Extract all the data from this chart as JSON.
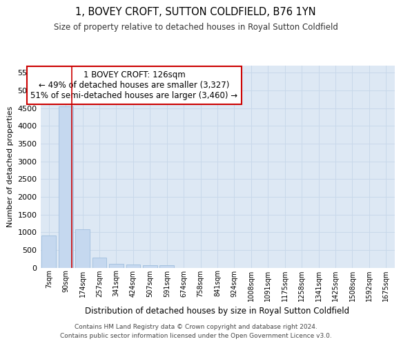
{
  "title": "1, BOVEY CROFT, SUTTON COLDFIELD, B76 1YN",
  "subtitle": "Size of property relative to detached houses in Royal Sutton Coldfield",
  "xlabel": "Distribution of detached houses by size in Royal Sutton Coldfield",
  "ylabel": "Number of detached properties",
  "categories": [
    "7sqm",
    "90sqm",
    "174sqm",
    "257sqm",
    "341sqm",
    "424sqm",
    "507sqm",
    "591sqm",
    "674sqm",
    "758sqm",
    "841sqm",
    "924sqm",
    "1008sqm",
    "1091sqm",
    "1175sqm",
    "1258sqm",
    "1341sqm",
    "1425sqm",
    "1508sqm",
    "1592sqm",
    "1675sqm"
  ],
  "values": [
    900,
    4550,
    1075,
    290,
    100,
    80,
    60,
    70,
    0,
    0,
    0,
    0,
    0,
    0,
    0,
    0,
    0,
    0,
    0,
    0,
    0
  ],
  "bar_color": "#c5d8ef",
  "bar_edge_color": "#a0bedd",
  "grid_color": "#c8d8ea",
  "background_color": "#dde8f4",
  "vline_x": 1.38,
  "vline_color": "#cc0000",
  "annotation_line1": "1 BOVEY CROFT: 126sqm",
  "annotation_line2": "← 49% of detached houses are smaller (3,327)",
  "annotation_line3": "51% of semi-detached houses are larger (3,460) →",
  "annotation_box_edgecolor": "#cc0000",
  "ylim_max": 5700,
  "yticks": [
    0,
    500,
    1000,
    1500,
    2000,
    2500,
    3000,
    3500,
    4000,
    4500,
    5000,
    5500
  ],
  "footer_line1": "Contains HM Land Registry data © Crown copyright and database right 2024.",
  "footer_line2": "Contains public sector information licensed under the Open Government Licence v3.0."
}
